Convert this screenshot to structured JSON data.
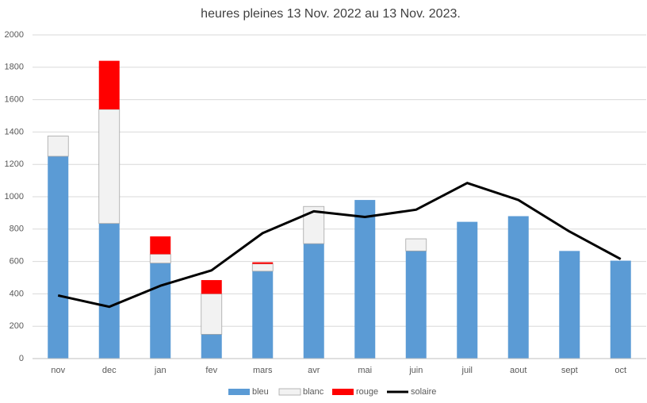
{
  "chart_data": {
    "type": "bar",
    "stacked": true,
    "title": "heures pleines 13 Nov. 2022 au 13 Nov. 2023.",
    "categories": [
      "nov",
      "dec",
      "jan",
      "fev",
      "mars",
      "avr",
      "mai",
      "juin",
      "juil",
      "aout",
      "sept",
      "oct"
    ],
    "series": [
      {
        "name": "bleu",
        "color": "#5b9bd5",
        "type": "bar",
        "values": [
          1250,
          835,
          590,
          150,
          540,
          710,
          980,
          665,
          845,
          880,
          665,
          605
        ]
      },
      {
        "name": "blanc",
        "color": "#f2f2f2",
        "type": "bar",
        "values": [
          125,
          705,
          55,
          250,
          45,
          230,
          0,
          75,
          0,
          0,
          0,
          0
        ]
      },
      {
        "name": "rouge",
        "color": "#ff0000",
        "type": "bar",
        "values": [
          0,
          300,
          110,
          85,
          10,
          0,
          0,
          0,
          0,
          0,
          0,
          0
        ]
      },
      {
        "name": "solaire",
        "color": "#000000",
        "type": "line",
        "values": [
          390,
          320,
          450,
          545,
          775,
          910,
          875,
          920,
          1085,
          980,
          785,
          615
        ]
      }
    ],
    "ylim": [
      0,
      2000
    ],
    "yticks": [
      0,
      200,
      400,
      600,
      800,
      1000,
      1200,
      1400,
      1600,
      1800,
      2000
    ],
    "grid": true,
    "legend": "bottom"
  }
}
